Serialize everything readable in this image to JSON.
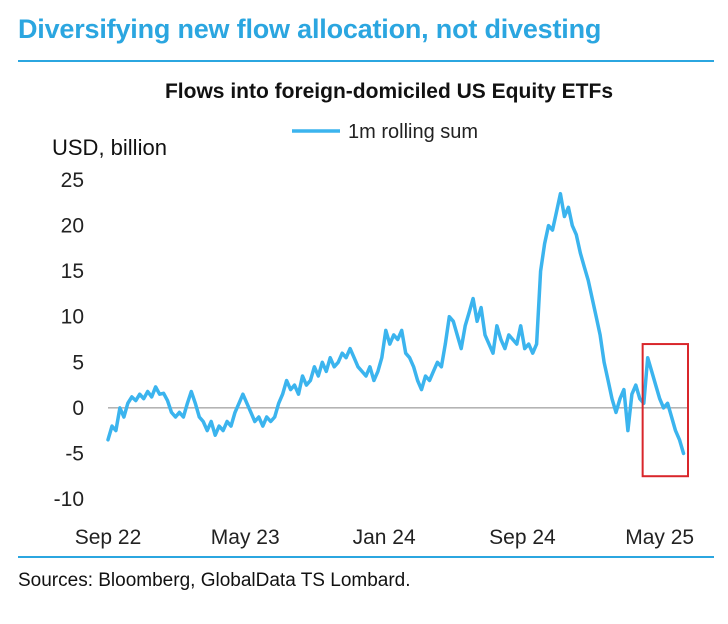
{
  "headline": "Diversifying new flow allocation, not divesting",
  "source": "Sources: Bloomberg, GlobalData TS Lombard.",
  "colors": {
    "accent": "#2ba6e0",
    "series": "#3bb4ee",
    "highlight_box": "#d9262b",
    "zero_line": "#888888"
  },
  "chart_data": {
    "type": "line",
    "title": "Flows into foreign-domiciled US Equity ETFs",
    "ylabel": "USD, billion",
    "xlabel": "",
    "ylim": [
      -10,
      25
    ],
    "yticks": [
      -10,
      -5,
      0,
      5,
      10,
      15,
      20,
      25
    ],
    "ytick_labels": [
      "-10",
      "-5",
      "0",
      "5",
      "10",
      "15",
      "20",
      "25"
    ],
    "xlim": [
      "2022-09-01",
      "2025-06-20"
    ],
    "xticks": [
      {
        "date": "2022-09-01",
        "label": "Sep 22"
      },
      {
        "date": "2023-05-01",
        "label": "May 23"
      },
      {
        "date": "2024-01-01",
        "label": "Jan 24"
      },
      {
        "date": "2024-09-01",
        "label": "Sep 24"
      },
      {
        "date": "2025-05-01",
        "label": "May 25"
      }
    ],
    "legend": {
      "position": "top-center",
      "entries": [
        "1m rolling sum"
      ]
    },
    "grid": false,
    "series": [
      {
        "name": "1m rolling sum",
        "points": [
          [
            "2022-09-01",
            -3.5
          ],
          [
            "2022-09-08",
            -2.0
          ],
          [
            "2022-09-15",
            -2.5
          ],
          [
            "2022-09-22",
            0.0
          ],
          [
            "2022-09-29",
            -1.0
          ],
          [
            "2022-10-06",
            0.5
          ],
          [
            "2022-10-13",
            1.2
          ],
          [
            "2022-10-20",
            0.8
          ],
          [
            "2022-10-27",
            1.5
          ],
          [
            "2022-11-03",
            1.0
          ],
          [
            "2022-11-10",
            1.8
          ],
          [
            "2022-11-17",
            1.2
          ],
          [
            "2022-11-24",
            2.3
          ],
          [
            "2022-12-01",
            1.5
          ],
          [
            "2022-12-08",
            1.6
          ],
          [
            "2022-12-15",
            0.8
          ],
          [
            "2022-12-22",
            -0.5
          ],
          [
            "2022-12-29",
            -1.0
          ],
          [
            "2023-01-05",
            -0.5
          ],
          [
            "2023-01-12",
            -1.0
          ],
          [
            "2023-01-19",
            0.5
          ],
          [
            "2023-01-26",
            1.8
          ],
          [
            "2023-02-02",
            0.5
          ],
          [
            "2023-02-09",
            -1.0
          ],
          [
            "2023-02-16",
            -1.5
          ],
          [
            "2023-02-23",
            -2.5
          ],
          [
            "2023-03-02",
            -1.5
          ],
          [
            "2023-03-09",
            -3.0
          ],
          [
            "2023-03-16",
            -2.0
          ],
          [
            "2023-03-23",
            -2.5
          ],
          [
            "2023-03-30",
            -1.5
          ],
          [
            "2023-04-06",
            -2.0
          ],
          [
            "2023-04-13",
            -0.5
          ],
          [
            "2023-04-20",
            0.5
          ],
          [
            "2023-04-27",
            1.5
          ],
          [
            "2023-05-04",
            0.5
          ],
          [
            "2023-05-11",
            -0.5
          ],
          [
            "2023-05-18",
            -1.5
          ],
          [
            "2023-05-25",
            -1.0
          ],
          [
            "2023-06-01",
            -2.0
          ],
          [
            "2023-06-08",
            -1.0
          ],
          [
            "2023-06-15",
            -1.5
          ],
          [
            "2023-06-22",
            -1.0
          ],
          [
            "2023-06-29",
            0.5
          ],
          [
            "2023-07-06",
            1.5
          ],
          [
            "2023-07-13",
            3.0
          ],
          [
            "2023-07-20",
            2.0
          ],
          [
            "2023-07-27",
            2.5
          ],
          [
            "2023-08-03",
            1.5
          ],
          [
            "2023-08-10",
            3.5
          ],
          [
            "2023-08-17",
            2.5
          ],
          [
            "2023-08-24",
            3.0
          ],
          [
            "2023-08-31",
            4.5
          ],
          [
            "2023-09-07",
            3.5
          ],
          [
            "2023-09-14",
            5.0
          ],
          [
            "2023-09-21",
            4.0
          ],
          [
            "2023-09-28",
            5.5
          ],
          [
            "2023-10-05",
            4.5
          ],
          [
            "2023-10-12",
            5.0
          ],
          [
            "2023-10-19",
            6.0
          ],
          [
            "2023-10-26",
            5.5
          ],
          [
            "2023-11-02",
            6.5
          ],
          [
            "2023-11-09",
            5.5
          ],
          [
            "2023-11-16",
            4.5
          ],
          [
            "2023-11-23",
            4.0
          ],
          [
            "2023-11-30",
            3.5
          ],
          [
            "2023-12-07",
            4.5
          ],
          [
            "2023-12-14",
            3.0
          ],
          [
            "2023-12-21",
            4.0
          ],
          [
            "2023-12-28",
            5.5
          ],
          [
            "2024-01-04",
            8.5
          ],
          [
            "2024-01-11",
            7.0
          ],
          [
            "2024-01-18",
            8.0
          ],
          [
            "2024-01-25",
            7.5
          ],
          [
            "2024-02-01",
            8.5
          ],
          [
            "2024-02-08",
            6.0
          ],
          [
            "2024-02-15",
            5.5
          ],
          [
            "2024-02-22",
            4.5
          ],
          [
            "2024-02-29",
            3.0
          ],
          [
            "2024-03-07",
            2.0
          ],
          [
            "2024-03-14",
            3.5
          ],
          [
            "2024-03-21",
            3.0
          ],
          [
            "2024-03-28",
            4.0
          ],
          [
            "2024-04-04",
            5.0
          ],
          [
            "2024-04-11",
            4.5
          ],
          [
            "2024-04-18",
            7.0
          ],
          [
            "2024-04-25",
            10.0
          ],
          [
            "2024-05-02",
            9.5
          ],
          [
            "2024-05-09",
            8.0
          ],
          [
            "2024-05-16",
            6.5
          ],
          [
            "2024-05-23",
            9.0
          ],
          [
            "2024-05-30",
            10.5
          ],
          [
            "2024-06-06",
            12.0
          ],
          [
            "2024-06-13",
            9.5
          ],
          [
            "2024-06-20",
            11.0
          ],
          [
            "2024-06-27",
            8.0
          ],
          [
            "2024-07-04",
            7.0
          ],
          [
            "2024-07-11",
            6.0
          ],
          [
            "2024-07-18",
            9.0
          ],
          [
            "2024-07-25",
            7.5
          ],
          [
            "2024-08-01",
            6.5
          ],
          [
            "2024-08-08",
            8.0
          ],
          [
            "2024-08-15",
            7.5
          ],
          [
            "2024-08-22",
            7.0
          ],
          [
            "2024-08-29",
            9.0
          ],
          [
            "2024-09-05",
            6.5
          ],
          [
            "2024-09-12",
            7.0
          ],
          [
            "2024-09-19",
            6.0
          ],
          [
            "2024-09-26",
            7.0
          ],
          [
            "2024-10-03",
            15.0
          ],
          [
            "2024-10-10",
            18.0
          ],
          [
            "2024-10-17",
            20.0
          ],
          [
            "2024-10-24",
            19.5
          ],
          [
            "2024-10-31",
            21.5
          ],
          [
            "2024-11-07",
            23.5
          ],
          [
            "2024-11-14",
            21.0
          ],
          [
            "2024-11-21",
            22.0
          ],
          [
            "2024-11-28",
            20.0
          ],
          [
            "2024-12-05",
            19.0
          ],
          [
            "2024-12-12",
            17.0
          ],
          [
            "2024-12-19",
            15.5
          ],
          [
            "2024-12-26",
            14.0
          ],
          [
            "2025-01-02",
            12.0
          ],
          [
            "2025-01-09",
            10.0
          ],
          [
            "2025-01-16",
            8.0
          ],
          [
            "2025-01-23",
            5.0
          ],
          [
            "2025-01-30",
            3.0
          ],
          [
            "2025-02-06",
            1.0
          ],
          [
            "2025-02-13",
            -0.5
          ],
          [
            "2025-02-20",
            1.0
          ],
          [
            "2025-02-27",
            2.0
          ],
          [
            "2025-03-06",
            -2.5
          ],
          [
            "2025-03-13",
            1.5
          ],
          [
            "2025-03-20",
            2.5
          ],
          [
            "2025-03-27",
            1.0
          ],
          [
            "2025-04-03",
            0.5
          ],
          [
            "2025-04-10",
            5.5
          ],
          [
            "2025-04-17",
            4.0
          ],
          [
            "2025-04-24",
            2.5
          ],
          [
            "2025-05-01",
            1.0
          ],
          [
            "2025-05-08",
            0.0
          ],
          [
            "2025-05-15",
            0.5
          ],
          [
            "2025-05-22",
            -1.0
          ],
          [
            "2025-05-29",
            -2.5
          ],
          [
            "2025-06-05",
            -3.5
          ],
          [
            "2025-06-12",
            -5.0
          ]
        ]
      }
    ],
    "annotations": [
      {
        "type": "rectangle",
        "note": "highlight box",
        "x_range": [
          "2025-04-01",
          "2025-06-20"
        ],
        "y_range": [
          -7.5,
          7
        ]
      }
    ]
  }
}
